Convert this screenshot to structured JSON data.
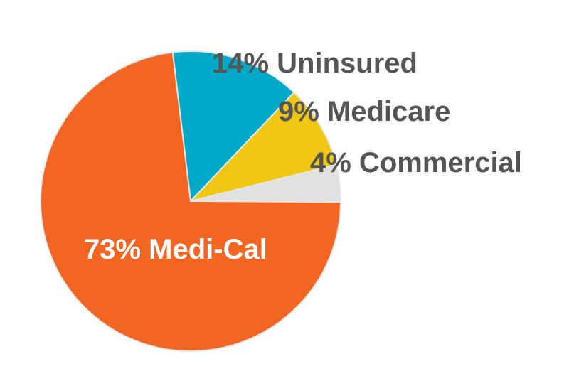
{
  "chart_data": {
    "type": "pie",
    "slices": [
      {
        "label": "14% Uninsured",
        "value": 14,
        "color": "#00A9C8",
        "text_color": "#555555"
      },
      {
        "label": "9% Medicare",
        "value": 9,
        "color": "#F0C814",
        "text_color": "#555555"
      },
      {
        "label": "4% Commercial",
        "value": 4,
        "color": "#E0E0E0",
        "text_color": "#555555"
      },
      {
        "label": "73% Medi-Cal",
        "value": 73,
        "color": "#F26522",
        "text_color": "#ffffff"
      }
    ],
    "start": "top",
    "direction": "clockwise",
    "legend": "none"
  }
}
